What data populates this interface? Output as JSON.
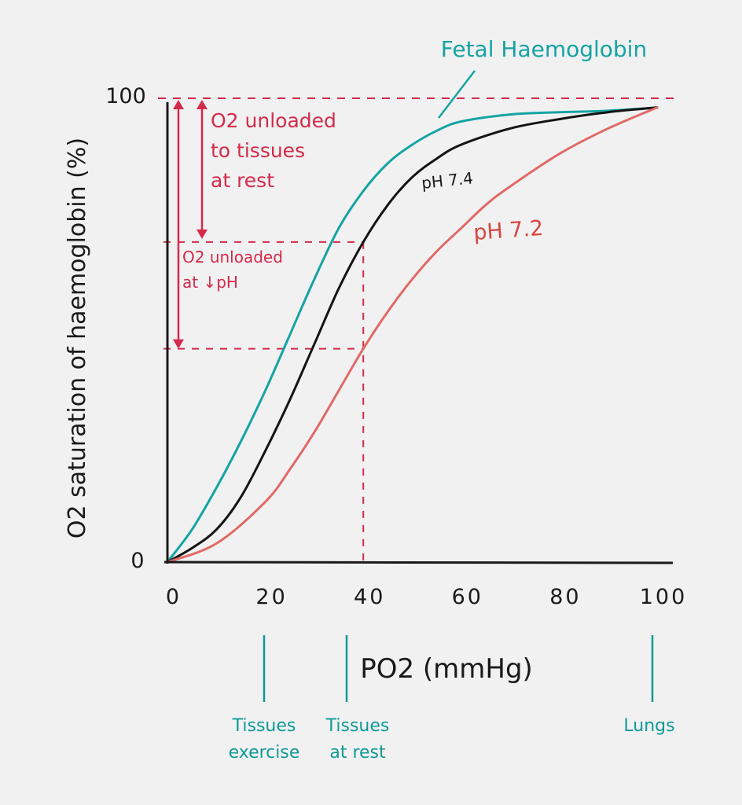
{
  "chart_data": {
    "type": "line",
    "ylabel": "O2 saturation of haemoglobin (%)",
    "xlabel": "PO2 (mmHg)",
    "xlim": [
      0,
      100
    ],
    "ylim": [
      0,
      100
    ],
    "x_ticks": [
      "0",
      "20",
      "40",
      "60",
      "80",
      "100"
    ],
    "y_ticks": [
      "0",
      "100"
    ],
    "grid": false,
    "colors": {
      "axis": "#1a1a1a",
      "annotation": "#d42a4a",
      "marker": "#0e9a96"
    },
    "series": [
      {
        "name": "Fetal Haemoglobin",
        "color": "#16a3a3",
        "x": [
          0,
          5,
          10,
          15,
          20,
          25,
          30,
          35,
          40,
          45,
          50,
          55,
          60,
          70,
          80,
          90,
          100
        ],
        "y": [
          0,
          7,
          16,
          26,
          37,
          49,
          61,
          72,
          80,
          86,
          90,
          93,
          95,
          96.5,
          97,
          97.3,
          98
        ]
      },
      {
        "name": "pH 7.4",
        "color": "#141414",
        "x": [
          0,
          5,
          10,
          15,
          20,
          25,
          30,
          35,
          40,
          45,
          50,
          55,
          60,
          70,
          80,
          90,
          100
        ],
        "y": [
          0,
          3,
          7,
          14,
          24,
          35,
          47,
          59,
          69,
          77,
          83,
          87,
          90,
          93.5,
          95.5,
          97,
          98
        ]
      },
      {
        "name": "pH 7.2",
        "color": "#e06a66",
        "x": [
          0,
          10,
          20,
          25,
          30,
          35,
          40,
          45,
          50,
          55,
          60,
          65,
          70,
          80,
          90,
          100
        ],
        "y": [
          0,
          4,
          13,
          20,
          28,
          37,
          46,
          54,
          61,
          67,
          72,
          77,
          81,
          88,
          93.5,
          98
        ]
      }
    ],
    "guides": {
      "x_at_rest": 40,
      "y_max_line": 100,
      "y_rest_74": 69,
      "y_rest_72": 46
    },
    "annotations": {
      "fetal_label": "Fetal Haemoglobin",
      "ph74_label": "pH 7.4",
      "ph72_label": "pH 7.2",
      "unload_rest_lines": [
        "O2 unloaded",
        "to tissues",
        "at rest"
      ],
      "unload_ph_lines": [
        "O2 unloaded",
        "at ↓pH"
      ],
      "markers": [
        {
          "x": 20,
          "lines": [
            "Tissues",
            "exercise"
          ]
        },
        {
          "x": 40,
          "lines": [
            "Tissues",
            "at rest"
          ]
        },
        {
          "x": 100,
          "lines": [
            "Lungs"
          ]
        }
      ]
    }
  }
}
